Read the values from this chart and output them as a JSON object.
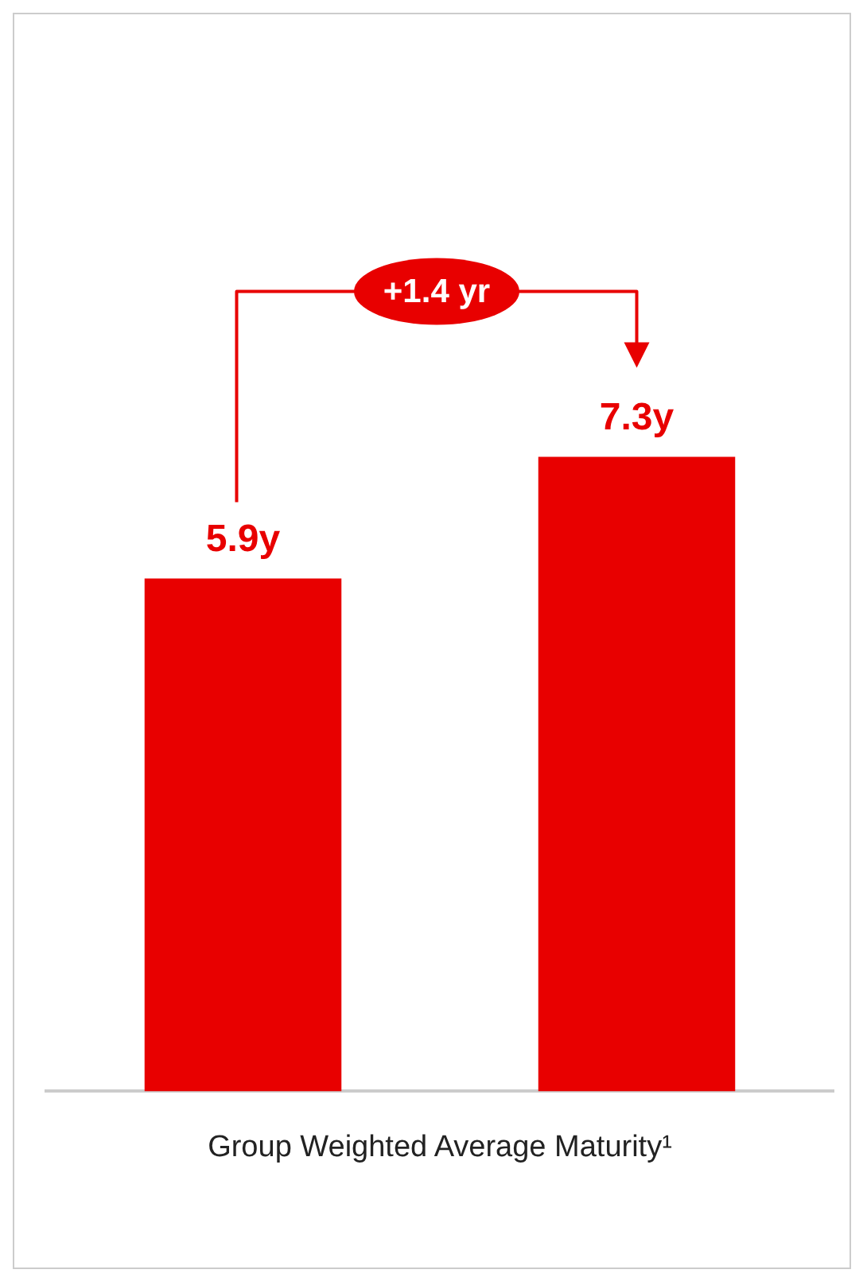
{
  "chart_data": {
    "type": "bar",
    "xlabel": "Group Weighted Average Maturity¹",
    "categories": [
      null,
      null
    ],
    "values": [
      5.9,
      7.3
    ],
    "value_labels": [
      "5.9y",
      "7.3y"
    ],
    "color": "#e80000",
    "grid": false,
    "legend": false,
    "annotations": [
      "+1.4 yr"
    ]
  }
}
